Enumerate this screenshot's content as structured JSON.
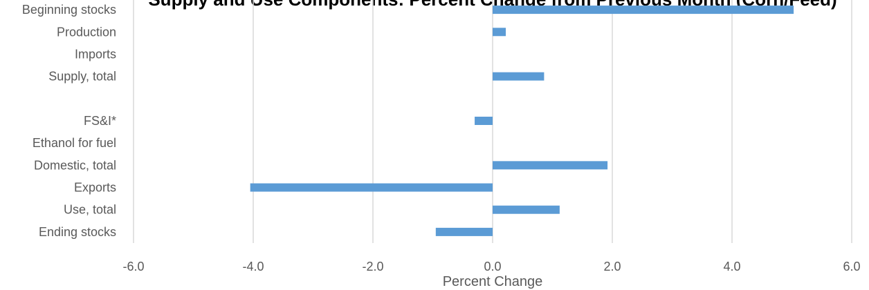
{
  "chart_data": {
    "type": "bar",
    "orientation": "horizontal",
    "title": "Supply and Use Components: Percent Change from Previous Month (Corn/Feed)",
    "xlabel": "Percent Change",
    "ylabel": "",
    "xlim": [
      -6.0,
      6.0
    ],
    "x_ticks": [
      "-6.0",
      "-4.0",
      "-2.0",
      "0.0",
      "2.0",
      "4.0",
      "6.0"
    ],
    "x_tick_values": [
      -6.0,
      -4.0,
      -2.0,
      0.0,
      2.0,
      4.0,
      6.0
    ],
    "categories": [
      "Beginning stocks",
      "Production",
      "Imports",
      "Supply, total",
      "",
      "FS&I*",
      "Ethanol for fuel",
      "Domestic, total",
      "Exports",
      "Use, total",
      "Ending stocks"
    ],
    "values": [
      5.03,
      0.22,
      0.0,
      0.86,
      null,
      -0.3,
      0.0,
      1.92,
      -4.05,
      1.12,
      -0.95
    ],
    "bar_color": "#5B9BD5",
    "grid": true,
    "grid_color": "#D9D9D9",
    "legend": false
  }
}
